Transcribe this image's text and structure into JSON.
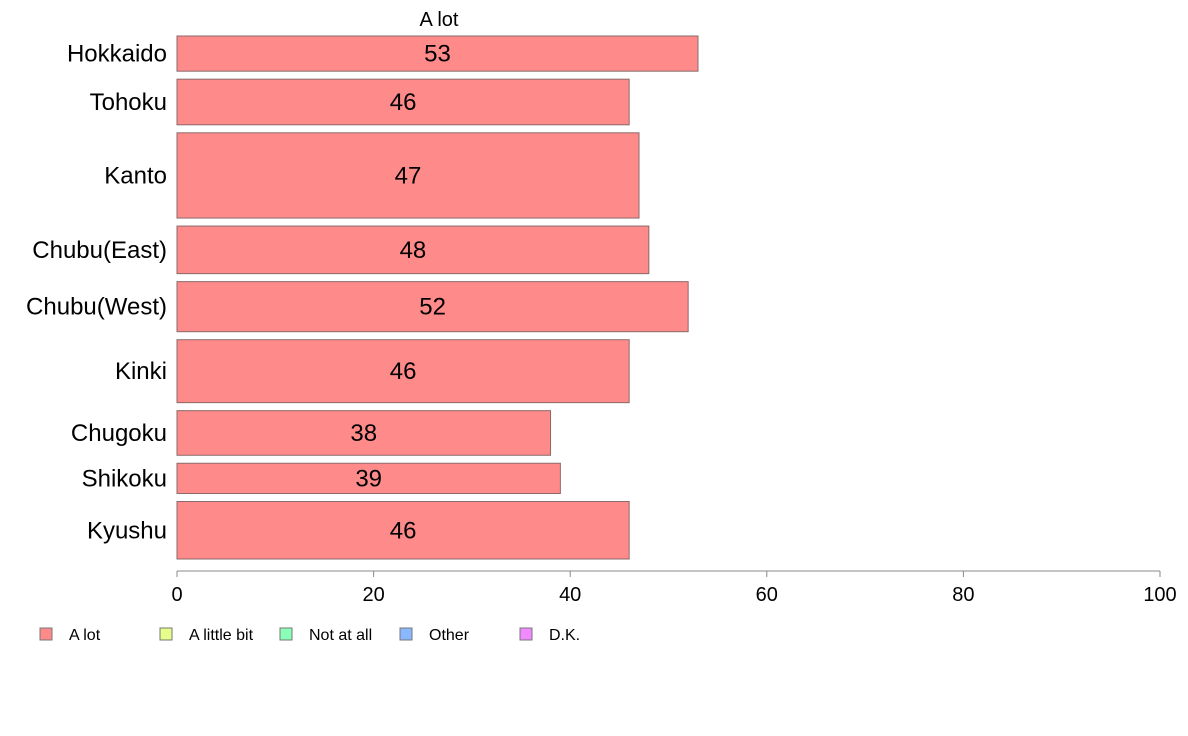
{
  "chart_data": {
    "type": "bar",
    "orientation": "horizontal",
    "title": "A lot",
    "categories": [
      "Hokkaido",
      "Tohoku",
      "Kanto",
      "Chubu(East)",
      "Chubu(West)",
      "Kinki",
      "Chugoku",
      "Shikoku",
      "Kyushu"
    ],
    "series": [
      {
        "name": "A lot",
        "values": [
          53,
          46,
          47,
          48,
          52,
          46,
          38,
          39,
          46
        ]
      }
    ],
    "relative_widths": [
      0.71,
      0.92,
      1.72,
      0.96,
      1.01,
      1.27,
      0.9,
      0.61,
      1.16
    ],
    "xlabel": "",
    "ylabel": "",
    "xlim": [
      0,
      100
    ],
    "xticks": [
      "0",
      "20",
      "40",
      "60",
      "80",
      "100"
    ],
    "grid": false,
    "bar_color": "#ff8a8a",
    "legend": {
      "placement": "bottom",
      "items": [
        {
          "label": "A lot",
          "color": "#ff8a8a"
        },
        {
          "label": "A little bit",
          "color": "#e6ff8a"
        },
        {
          "label": "Not at all",
          "color": "#8affb8"
        },
        {
          "label": "Other",
          "color": "#8ab8ff"
        },
        {
          "label": "D.K.",
          "color": "#f08aff"
        }
      ]
    }
  }
}
